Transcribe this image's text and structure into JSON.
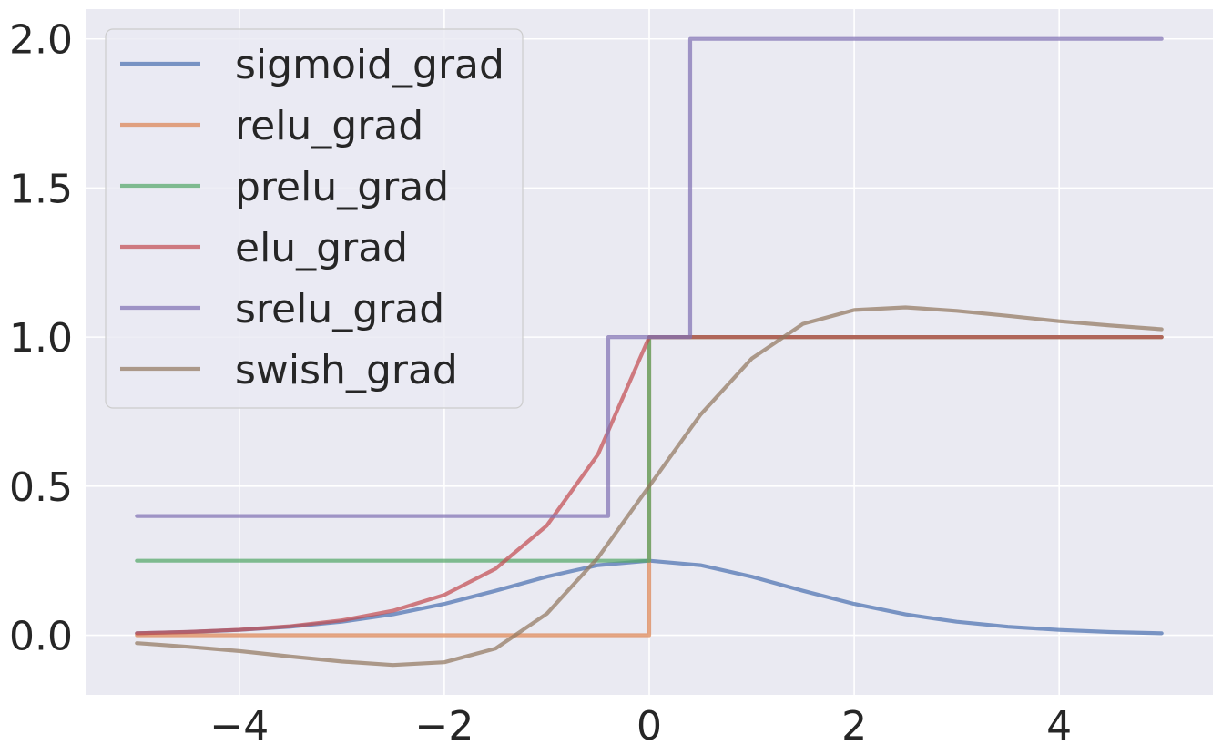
{
  "chart_data": {
    "type": "line",
    "title": "",
    "xlabel": "",
    "ylabel": "",
    "xlim": [
      -5.5,
      5.5
    ],
    "ylim": [
      -0.2,
      2.1
    ],
    "x_ticks": [
      -4,
      -2,
      0,
      2,
      4
    ],
    "x_tick_labels": [
      "−4",
      "−2",
      "0",
      "2",
      "4"
    ],
    "y_ticks": [
      0.0,
      0.5,
      1.0,
      1.5,
      2.0
    ],
    "y_tick_labels": [
      "0.0",
      "0.5",
      "1.0",
      "1.5",
      "2.0"
    ],
    "grid": true,
    "legend_position": "top-left",
    "background_color": "#EAEAF2",
    "grid_color": "#FFFFFF",
    "series": [
      {
        "name": "sigmoid_grad",
        "color": "#4C72B0",
        "x": [
          -5,
          -4.5,
          -4,
          -3.5,
          -3,
          -2.5,
          -2,
          -1.5,
          -1,
          -0.5,
          0,
          0.5,
          1,
          1.5,
          2,
          2.5,
          3,
          3.5,
          4,
          4.5,
          5
        ],
        "y": [
          0.0066,
          0.0109,
          0.0177,
          0.0285,
          0.0452,
          0.0701,
          0.105,
          0.1491,
          0.1966,
          0.235,
          0.25,
          0.235,
          0.1966,
          0.1491,
          0.105,
          0.0701,
          0.0452,
          0.0285,
          0.0177,
          0.0109,
          0.0066
        ]
      },
      {
        "name": "relu_grad",
        "color": "#DD8452",
        "x": [
          -5,
          0,
          0,
          5
        ],
        "y": [
          0,
          0,
          1,
          1
        ]
      },
      {
        "name": "prelu_grad",
        "color": "#55A868",
        "x": [
          -5,
          0,
          0,
          5
        ],
        "y": [
          0.25,
          0.25,
          1,
          1
        ]
      },
      {
        "name": "elu_grad",
        "color": "#C44E52",
        "x": [
          -5,
          -4.5,
          -4,
          -3.5,
          -3,
          -2.5,
          -2,
          -1.5,
          -1,
          -0.5,
          0,
          5
        ],
        "y": [
          0.0067,
          0.0111,
          0.0183,
          0.0302,
          0.0498,
          0.0821,
          0.1353,
          0.2231,
          0.3679,
          0.6065,
          1,
          1
        ]
      },
      {
        "name": "srelu_grad",
        "color": "#8172B3",
        "x": [
          -5,
          -0.4,
          -0.4,
          0.4,
          0.4,
          5
        ],
        "y": [
          0.4,
          0.4,
          1,
          1,
          2,
          2
        ]
      },
      {
        "name": "swish_grad",
        "color": "#937860",
        "x": [
          -5,
          -4.5,
          -4,
          -3.5,
          -3,
          -2.5,
          -2,
          -1.5,
          -1,
          -0.5,
          0,
          0.5,
          1,
          1.5,
          2,
          2.5,
          3,
          3.5,
          4,
          4.5,
          5
        ],
        "y": [
          -0.0265,
          -0.0388,
          -0.0532,
          -0.0713,
          -0.0881,
          -0.0998,
          -0.0908,
          -0.0445,
          0.0723,
          0.26,
          0.5,
          0.74,
          0.9277,
          1.0445,
          1.0908,
          1.0998,
          1.0881,
          1.0713,
          1.0532,
          1.0388,
          1.0265
        ]
      }
    ]
  }
}
